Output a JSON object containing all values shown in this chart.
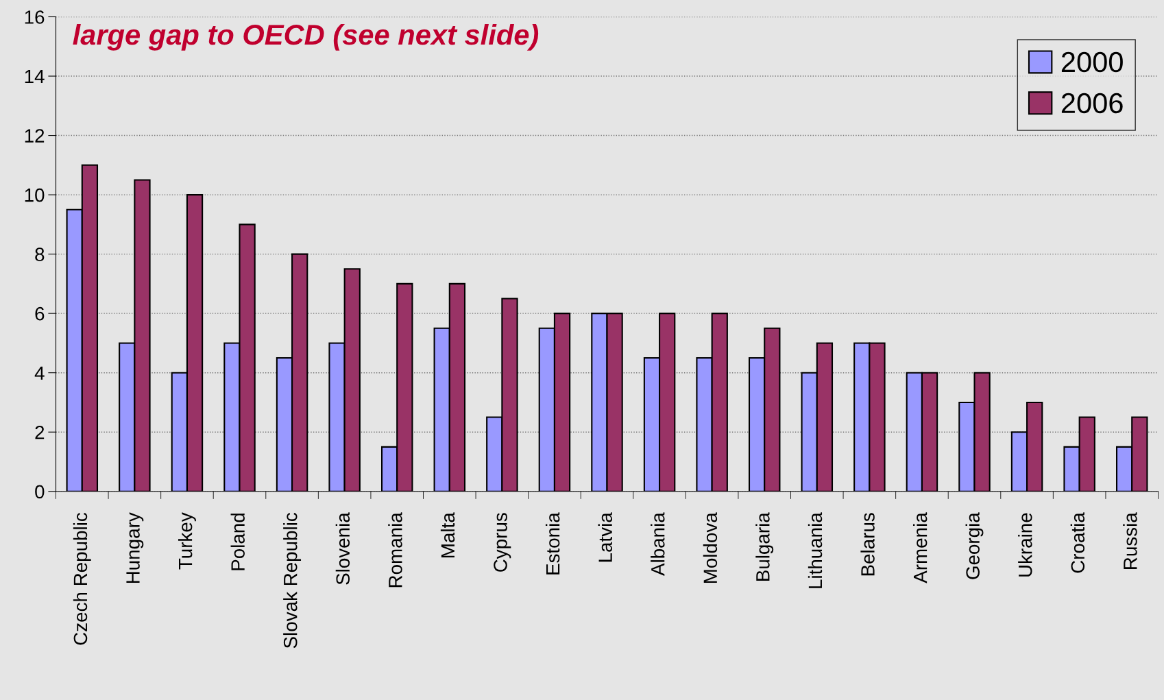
{
  "chart_data": {
    "type": "bar",
    "title": "large gap to OECD (see next slide)",
    "categories": [
      "Czech Republic",
      "Hungary",
      "Turkey",
      "Poland",
      "Slovak Republic",
      "Slovenia",
      "Romania",
      "Malta",
      "Cyprus",
      "Estonia",
      "Latvia",
      "Albania",
      "Moldova",
      "Bulgaria",
      "Lithuania",
      "Belarus",
      "Armenia",
      "Georgia",
      "Ukraine",
      "Croatia",
      "Russia"
    ],
    "series": [
      {
        "name": "2000",
        "color": "#9999ff",
        "values": [
          9.5,
          5,
          4,
          5,
          4.5,
          5,
          1.5,
          5.5,
          2.5,
          5.5,
          6,
          4.5,
          4.5,
          4.5,
          4,
          5,
          4,
          3,
          2,
          1.5,
          1.5
        ]
      },
      {
        "name": "2006",
        "color": "#993366",
        "values": [
          11,
          10.5,
          10,
          9,
          8,
          7.5,
          7,
          7,
          6.5,
          6,
          6,
          6,
          6,
          5.5,
          5,
          5,
          4,
          4,
          3,
          2.5,
          2.5
        ]
      }
    ],
    "ylim": [
      0,
      16
    ],
    "yticks": [
      0,
      2,
      4,
      6,
      8,
      10,
      12,
      14,
      16
    ],
    "grid": "y",
    "legend": "top right"
  }
}
